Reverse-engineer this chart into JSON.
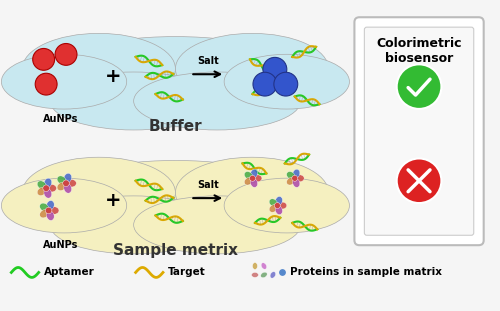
{
  "bg_color": "#f0f0f0",
  "buffer_cloud_color": "#c8e8f0",
  "sample_cloud_color": "#f5f0c0",
  "aunp_red": "#e03030",
  "aunp_blue": "#3355cc",
  "green": "#22cc22",
  "orange": "#ddaa00",
  "buffer_label": "Buffer",
  "sample_label": "Sample metrix",
  "salt_label": "Salt",
  "aunps_label": "AuNPs",
  "colorimetric_title": "Colorimetric\nbiosensor",
  "check_color": "#33bb33",
  "cross_color": "#dd2222",
  "legend_aptamer": "Aptamer",
  "legend_target": "Target",
  "legend_proteins": "Proteins in sample matrix",
  "white": "#ffffff"
}
